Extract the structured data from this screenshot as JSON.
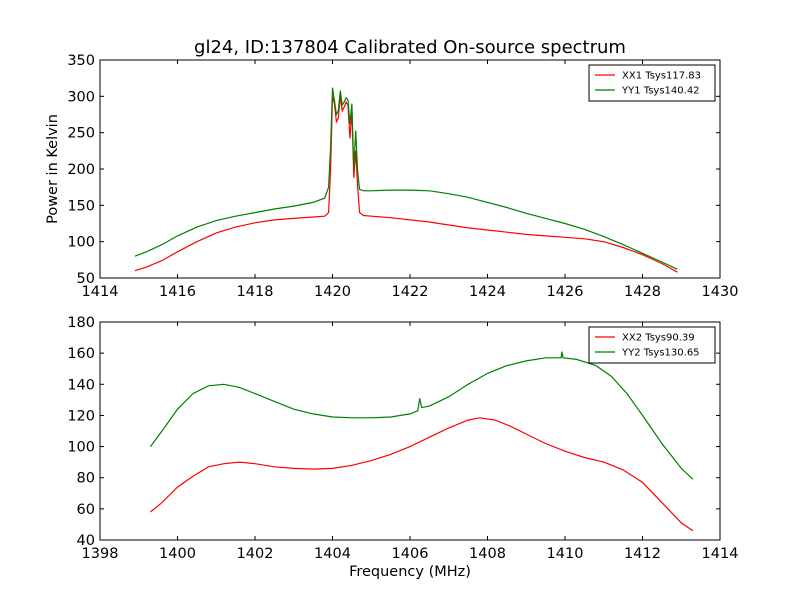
{
  "title": "gl24, ID:137804 Calibrated On-source spectrum",
  "chart_data": [
    {
      "type": "line",
      "xlabel": "",
      "ylabel": "Power in Kelvin",
      "xlim": [
        1414,
        1430
      ],
      "ylim": [
        50,
        350
      ],
      "xticks": [
        1414,
        1416,
        1418,
        1420,
        1422,
        1424,
        1426,
        1428,
        1430
      ],
      "yticks": [
        50,
        100,
        150,
        200,
        250,
        300,
        350
      ],
      "grid": false,
      "legend_position": "top-right",
      "series": [
        {
          "name": "XX1 Tsys117.83",
          "color": "#ff0000",
          "points": [
            [
              1414.9,
              60
            ],
            [
              1415.2,
              65
            ],
            [
              1415.6,
              74
            ],
            [
              1416.0,
              86
            ],
            [
              1416.5,
              100
            ],
            [
              1417.0,
              112
            ],
            [
              1417.5,
              120
            ],
            [
              1418.0,
              126
            ],
            [
              1418.5,
              130
            ],
            [
              1419.0,
              132
            ],
            [
              1419.5,
              134
            ],
            [
              1419.8,
              135
            ],
            [
              1419.9,
              140
            ],
            [
              1419.95,
              200
            ],
            [
              1420.0,
              300
            ],
            [
              1420.05,
              290
            ],
            [
              1420.1,
              265
            ],
            [
              1420.15,
              270
            ],
            [
              1420.2,
              300
            ],
            [
              1420.25,
              280
            ],
            [
              1420.3,
              285
            ],
            [
              1420.35,
              292
            ],
            [
              1420.4,
              288
            ],
            [
              1420.45,
              242
            ],
            [
              1420.5,
              280
            ],
            [
              1420.55,
              188
            ],
            [
              1420.6,
              225
            ],
            [
              1420.65,
              175
            ],
            [
              1420.7,
              140
            ],
            [
              1420.8,
              136
            ],
            [
              1421.0,
              135
            ],
            [
              1421.5,
              133
            ],
            [
              1422.0,
              130
            ],
            [
              1422.5,
              127
            ],
            [
              1423.0,
              123
            ],
            [
              1423.5,
              119
            ],
            [
              1424.0,
              116
            ],
            [
              1424.5,
              113
            ],
            [
              1425.0,
              110
            ],
            [
              1425.5,
              108
            ],
            [
              1426.0,
              106
            ],
            [
              1426.5,
              104
            ],
            [
              1427.0,
              100
            ],
            [
              1427.5,
              92
            ],
            [
              1428.0,
              82
            ],
            [
              1428.5,
              70
            ],
            [
              1428.9,
              58
            ]
          ]
        },
        {
          "name": "YY1 Tsys140.42",
          "color": "#008000",
          "points": [
            [
              1414.9,
              80
            ],
            [
              1415.2,
              86
            ],
            [
              1415.6,
              96
            ],
            [
              1416.0,
              108
            ],
            [
              1416.5,
              120
            ],
            [
              1417.0,
              129
            ],
            [
              1417.5,
              135
            ],
            [
              1418.0,
              140
            ],
            [
              1418.5,
              145
            ],
            [
              1419.0,
              149
            ],
            [
              1419.5,
              154
            ],
            [
              1419.8,
              160
            ],
            [
              1419.9,
              175
            ],
            [
              1419.95,
              230
            ],
            [
              1420.0,
              312
            ],
            [
              1420.05,
              295
            ],
            [
              1420.1,
              275
            ],
            [
              1420.15,
              280
            ],
            [
              1420.2,
              308
            ],
            [
              1420.25,
              288
            ],
            [
              1420.3,
              292
            ],
            [
              1420.35,
              298
            ],
            [
              1420.4,
              295
            ],
            [
              1420.45,
              262
            ],
            [
              1420.5,
              290
            ],
            [
              1420.55,
              200
            ],
            [
              1420.6,
              253
            ],
            [
              1420.65,
              195
            ],
            [
              1420.7,
              172
            ],
            [
              1420.8,
              170
            ],
            [
              1421.0,
              170
            ],
            [
              1421.5,
              171
            ],
            [
              1422.0,
              171
            ],
            [
              1422.5,
              170
            ],
            [
              1423.0,
              166
            ],
            [
              1423.5,
              161
            ],
            [
              1424.0,
              154
            ],
            [
              1424.5,
              147
            ],
            [
              1425.0,
              139
            ],
            [
              1425.5,
              132
            ],
            [
              1426.0,
              125
            ],
            [
              1426.5,
              117
            ],
            [
              1427.0,
              107
            ],
            [
              1427.5,
              96
            ],
            [
              1428.0,
              84
            ],
            [
              1428.5,
              72
            ],
            [
              1428.9,
              62
            ]
          ]
        }
      ]
    },
    {
      "type": "line",
      "xlabel": "Frequency (MHz)",
      "ylabel": "",
      "xlim": [
        1398,
        1414
      ],
      "ylim": [
        40,
        180
      ],
      "xticks": [
        1398,
        1400,
        1402,
        1404,
        1406,
        1408,
        1410,
        1412,
        1414
      ],
      "yticks": [
        40,
        60,
        80,
        100,
        120,
        140,
        160,
        180
      ],
      "grid": false,
      "legend_position": "top-right",
      "series": [
        {
          "name": "XX2 Tsys90.39",
          "color": "#ff0000",
          "points": [
            [
              1399.3,
              58
            ],
            [
              1399.6,
              64
            ],
            [
              1400.0,
              74
            ],
            [
              1400.4,
              81
            ],
            [
              1400.8,
              87
            ],
            [
              1401.2,
              89
            ],
            [
              1401.6,
              90
            ],
            [
              1402.0,
              89
            ],
            [
              1402.5,
              87
            ],
            [
              1403.0,
              86
            ],
            [
              1403.5,
              85.5
            ],
            [
              1404.0,
              86
            ],
            [
              1404.5,
              88
            ],
            [
              1405.0,
              91
            ],
            [
              1405.5,
              95
            ],
            [
              1406.0,
              100
            ],
            [
              1406.5,
              106
            ],
            [
              1407.0,
              112
            ],
            [
              1407.5,
              117
            ],
            [
              1407.8,
              118.5
            ],
            [
              1408.2,
              117
            ],
            [
              1408.6,
              113
            ],
            [
              1409.0,
              108
            ],
            [
              1409.5,
              102
            ],
            [
              1410.0,
              97
            ],
            [
              1410.5,
              93
            ],
            [
              1411.0,
              90
            ],
            [
              1411.5,
              85
            ],
            [
              1412.0,
              77
            ],
            [
              1412.5,
              64
            ],
            [
              1413.0,
              51
            ],
            [
              1413.3,
              46
            ]
          ]
        },
        {
          "name": "YY2 Tsys130.65",
          "color": "#008000",
          "points": [
            [
              1399.3,
              100
            ],
            [
              1399.6,
              110
            ],
            [
              1400.0,
              124
            ],
            [
              1400.4,
              134
            ],
            [
              1400.8,
              139
            ],
            [
              1401.2,
              140
            ],
            [
              1401.6,
              138
            ],
            [
              1402.0,
              134
            ],
            [
              1402.5,
              129
            ],
            [
              1403.0,
              124
            ],
            [
              1403.5,
              121
            ],
            [
              1404.0,
              119
            ],
            [
              1404.5,
              118.5
            ],
            [
              1405.0,
              118.5
            ],
            [
              1405.5,
              119
            ],
            [
              1406.0,
              121
            ],
            [
              1406.2,
              123
            ],
            [
              1406.25,
              131
            ],
            [
              1406.3,
              125
            ],
            [
              1406.5,
              126
            ],
            [
              1407.0,
              132
            ],
            [
              1407.5,
              140
            ],
            [
              1408.0,
              147
            ],
            [
              1408.5,
              152
            ],
            [
              1409.0,
              155
            ],
            [
              1409.5,
              157
            ],
            [
              1409.9,
              157
            ],
            [
              1409.92,
              161
            ],
            [
              1409.95,
              157
            ],
            [
              1410.3,
              156
            ],
            [
              1410.8,
              152
            ],
            [
              1411.2,
              145
            ],
            [
              1411.6,
              134
            ],
            [
              1412.0,
              120
            ],
            [
              1412.5,
              102
            ],
            [
              1413.0,
              86
            ],
            [
              1413.3,
              79
            ]
          ]
        }
      ]
    }
  ]
}
